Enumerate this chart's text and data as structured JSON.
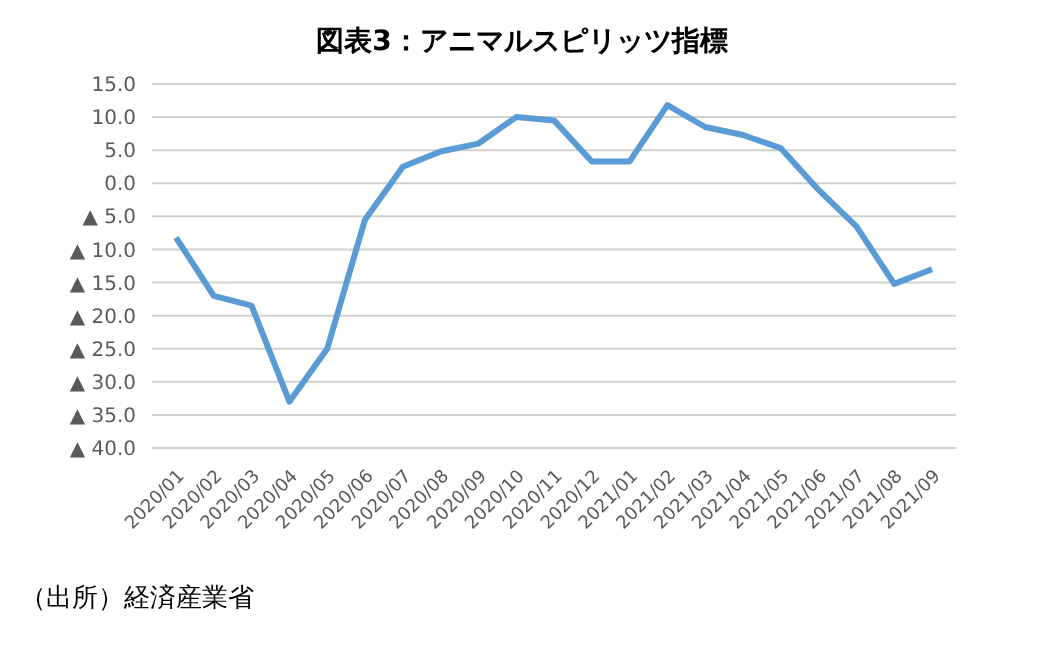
{
  "chart_data": {
    "type": "line",
    "title": "図表3：アニマルスピリッツ指標",
    "categories": [
      "2020/01",
      "2020/02",
      "2020/03",
      "2020/04",
      "2020/05",
      "2020/06",
      "2020/07",
      "2020/08",
      "2020/09",
      "2020/10",
      "2020/11",
      "2020/12",
      "2021/01",
      "2021/02",
      "2021/03",
      "2021/04",
      "2021/05",
      "2021/06",
      "2021/07",
      "2021/08",
      "2021/09"
    ],
    "series": [
      {
        "color": "#5b9bd5",
        "values": [
          -8.2,
          -17,
          -18.5,
          -33,
          -25,
          -5.5,
          2.5,
          4.8,
          6,
          10,
          9.5,
          3.3,
          3.3,
          11.8,
          8.5,
          7.3,
          5.3,
          -1,
          -6.5,
          -15.2,
          -13
        ]
      }
    ],
    "ylim": [
      -40,
      15
    ],
    "yticks": [
      {
        "value": -40,
        "label": "▲ 40.0"
      },
      {
        "value": -35,
        "label": "▲ 35.0"
      },
      {
        "value": -30,
        "label": "▲ 30.0"
      },
      {
        "value": -25,
        "label": "▲ 25.0"
      },
      {
        "value": -20,
        "label": "▲ 20.0"
      },
      {
        "value": -15,
        "label": "▲ 15.0"
      },
      {
        "value": -10,
        "label": "▲ 10.0"
      },
      {
        "value": -5,
        "label": "▲ 5.0"
      },
      {
        "value": 0,
        "label": "0.0"
      },
      {
        "value": 5,
        "label": "5.0"
      },
      {
        "value": 10,
        "label": "10.0"
      },
      {
        "value": 15,
        "label": "15.0"
      }
    ],
    "grid": "y",
    "legend": false,
    "marker": "none",
    "line_style": "solid",
    "annotations": [
      "（出所）経済産業省"
    ]
  }
}
